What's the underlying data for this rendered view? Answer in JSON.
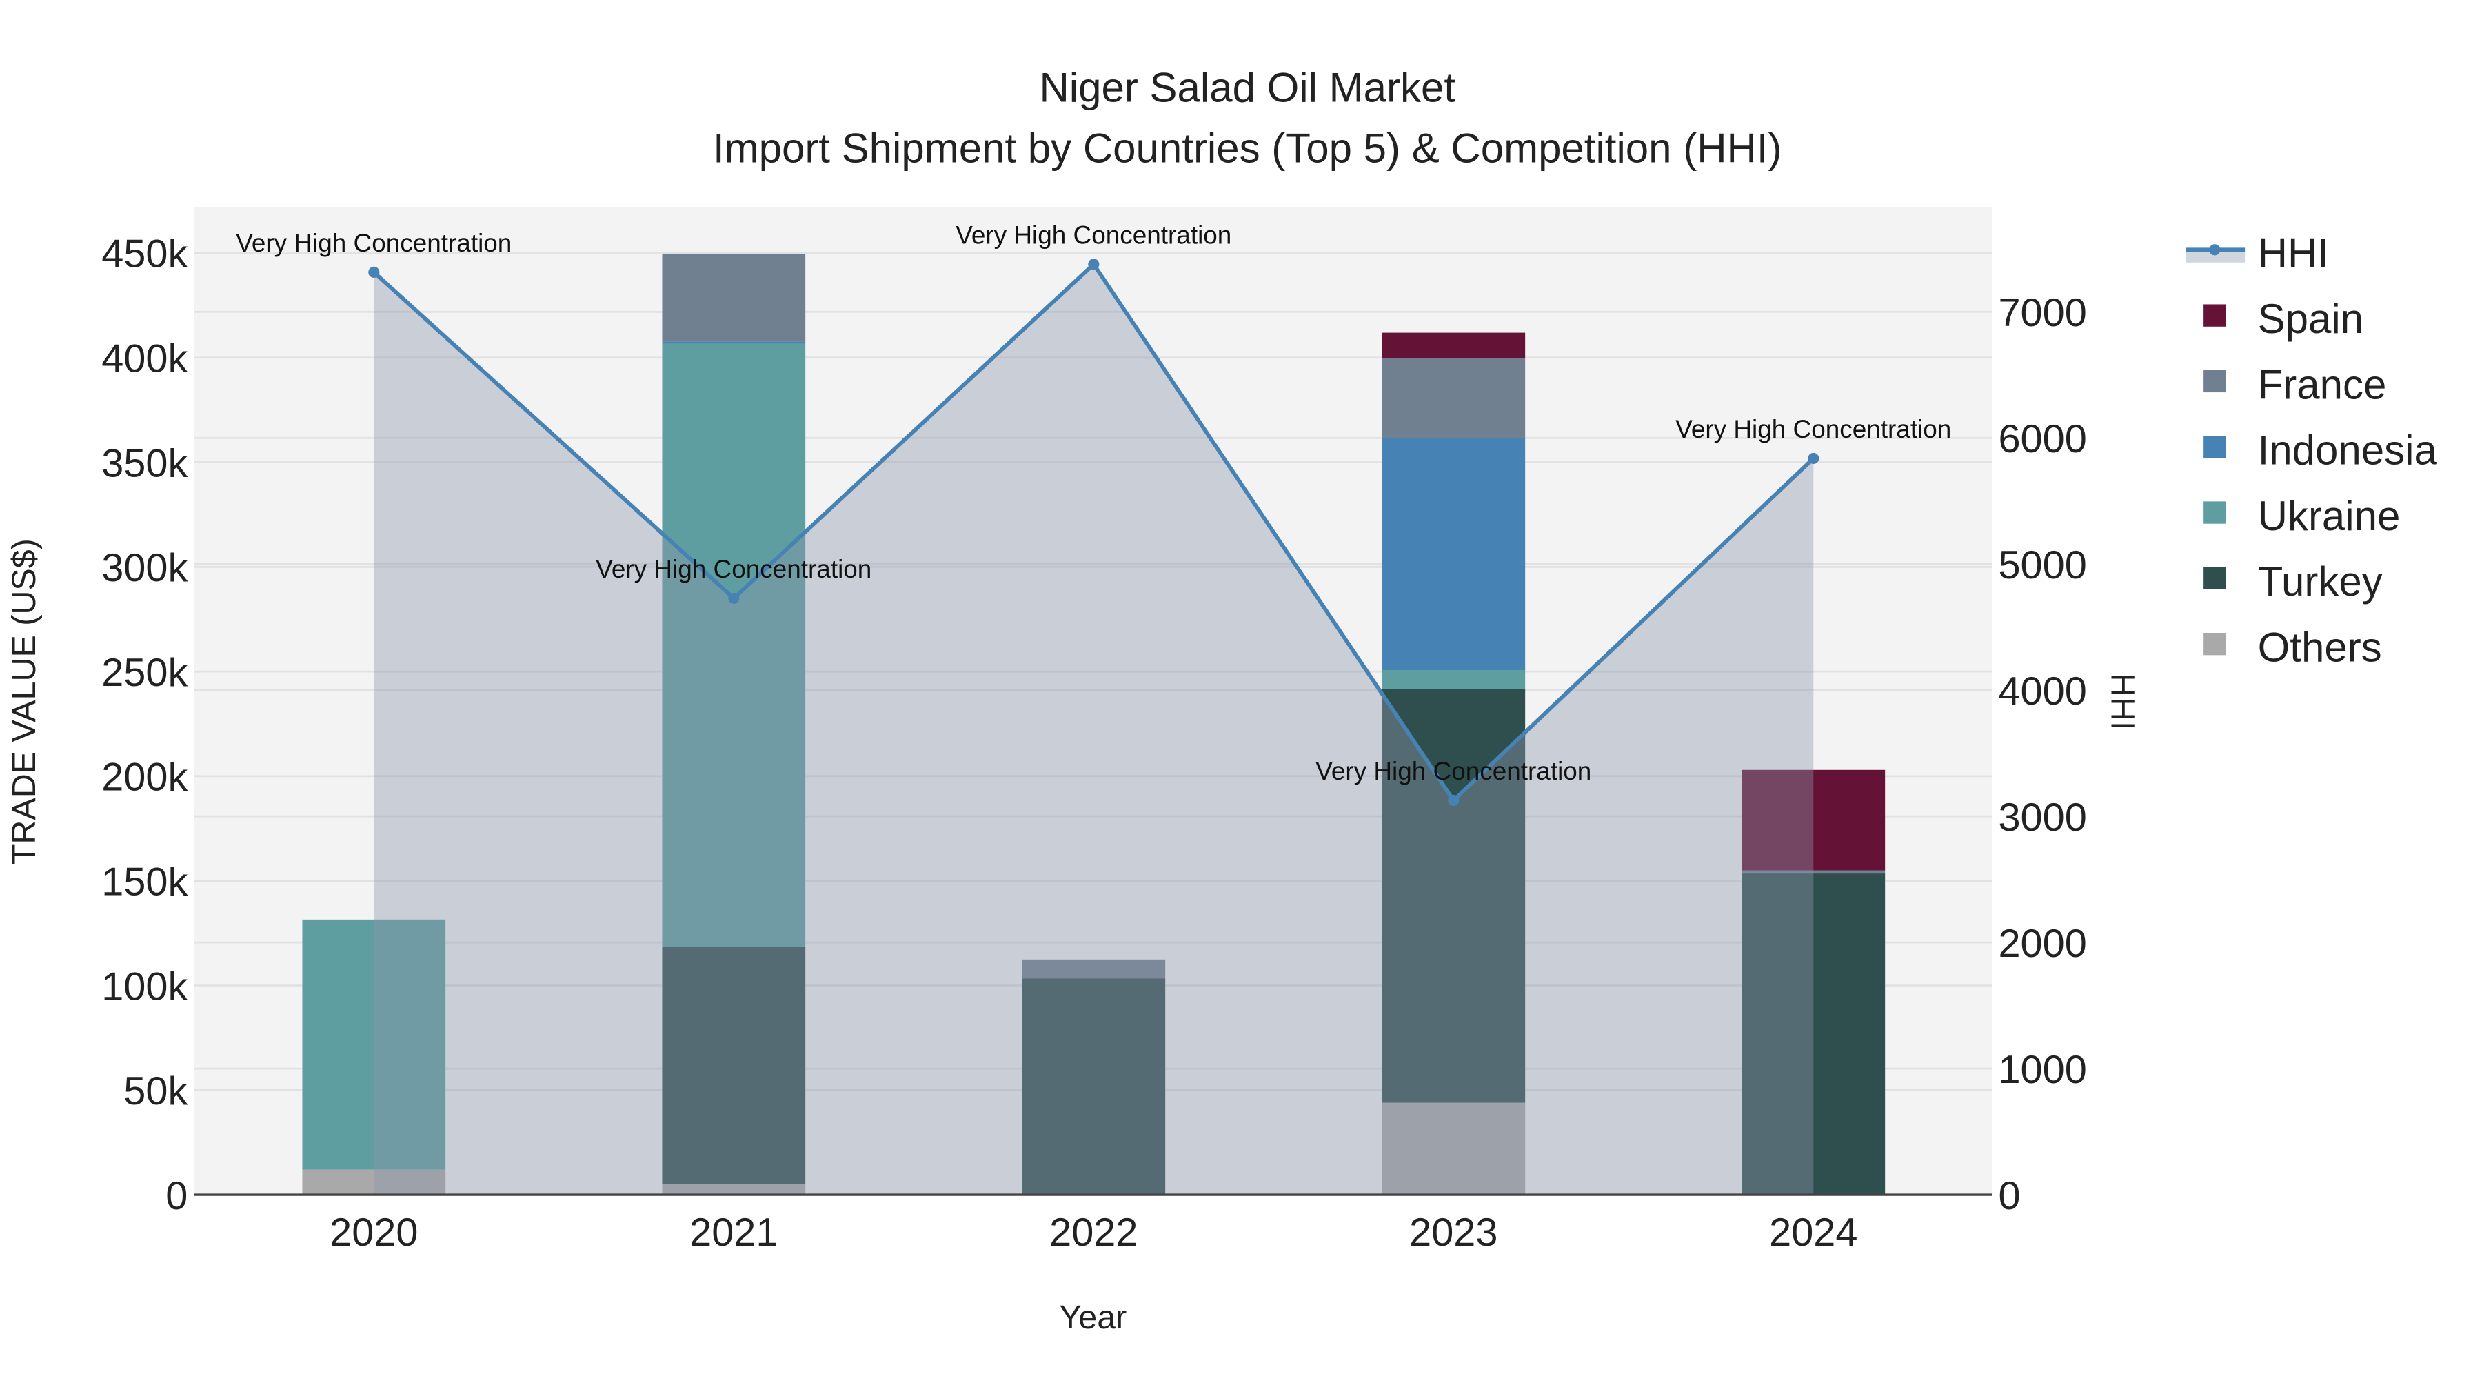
{
  "chart_data": {
    "type": "bar",
    "stacked": true,
    "title": "Niger Salad Oil Market",
    "subtitle": "Import Shipment by Countries (Top 5) & Competition (HHI)",
    "xlabel": "Year",
    "ylabel": "TRADE VALUE (US$)",
    "y2label": "HHI",
    "categories": [
      "2020",
      "2021",
      "2022",
      "2023",
      "2024"
    ],
    "ylim": [
      0,
      470000
    ],
    "y2lim": [
      0,
      7800
    ],
    "yticks": [
      0,
      50000,
      100000,
      150000,
      200000,
      250000,
      300000,
      350000,
      400000,
      450000
    ],
    "ytick_labels": [
      "0",
      "50k",
      "100k",
      "150k",
      "200k",
      "250k",
      "300k",
      "350k",
      "400k",
      "450k"
    ],
    "y2ticks": [
      0,
      1000,
      2000,
      3000,
      4000,
      5000,
      6000,
      7000
    ],
    "y2tick_labels": [
      "0",
      "1000",
      "2000",
      "3000",
      "4000",
      "5000",
      "6000",
      "7000"
    ],
    "grid": true,
    "legend_position": "right",
    "series": [
      {
        "name": "Others",
        "color": "#a9a9a9",
        "values": [
          12000,
          5000,
          0,
          44000,
          0
        ]
      },
      {
        "name": "Turkey",
        "color": "#2f4f4f",
        "values": [
          0,
          113600,
          103400,
          197700,
          153500
        ]
      },
      {
        "name": "Ukraine",
        "color": "#5f9ea0",
        "values": [
          119500,
          288000,
          0,
          9000,
          0
        ]
      },
      {
        "name": "Indonesia",
        "color": "#4682b4",
        "values": [
          0,
          1000,
          0,
          111000,
          0
        ]
      },
      {
        "name": "France",
        "color": "#708090",
        "values": [
          0,
          41800,
          9000,
          38000,
          1500
        ]
      },
      {
        "name": "Spain",
        "color": "#641236",
        "values": [
          0,
          0,
          0,
          12200,
          48000
        ]
      }
    ],
    "hhi": {
      "name": "HHI",
      "color": "#4682b4",
      "values": [
        7314,
        4729,
        7377,
        3127,
        5838
      ],
      "annotations": [
        "Very High Concentration",
        "Very High Concentration",
        "Very High Concentration",
        "Very High Concentration",
        "Very High Concentration"
      ]
    },
    "legend": [
      "HHI",
      "Spain",
      "France",
      "Indonesia",
      "Ukraine",
      "Turkey",
      "Others"
    ]
  }
}
